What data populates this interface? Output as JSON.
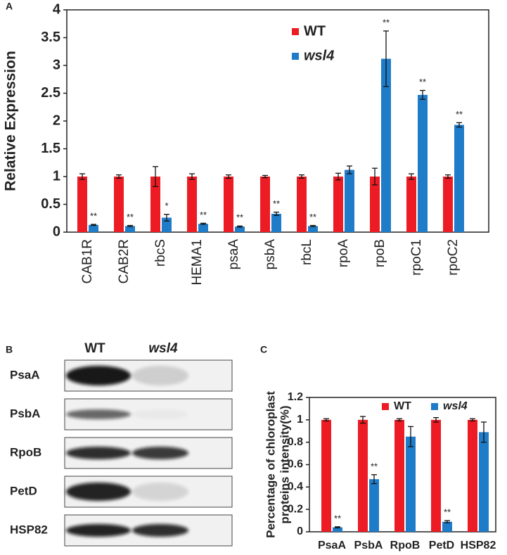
{
  "chart_data": [
    {
      "type": "bar",
      "panel_label": "A",
      "ylabel": "Relative Expression",
      "categories": [
        "CAB1R",
        "CAB2R",
        "rbcS",
        "HEMA1",
        "psaA",
        "psbA",
        "rbcL",
        "rpoA",
        "rpoB",
        "rpoC1",
        "rpoC2"
      ],
      "series": [
        {
          "name": "WT",
          "color": "#ed1c24",
          "values": [
            1,
            1,
            1,
            1,
            1,
            1,
            1,
            1,
            1,
            1,
            1
          ],
          "errors": [
            0.05,
            0.03,
            0.18,
            0.05,
            0.03,
            0.02,
            0.03,
            0.06,
            0.15,
            0.05,
            0.03
          ]
        },
        {
          "name": "wsl4",
          "color": "#1f7cc8",
          "values": [
            0.13,
            0.11,
            0.26,
            0.15,
            0.1,
            0.33,
            0.11,
            1.12,
            3.12,
            2.47,
            1.93
          ],
          "errors": [
            0.01,
            0.01,
            0.06,
            0.01,
            0.01,
            0.03,
            0.01,
            0.07,
            0.5,
            0.08,
            0.04
          ],
          "significance": [
            "**",
            "**",
            "*",
            "**",
            "**",
            "**",
            "**",
            null,
            "**",
            "**",
            "**"
          ]
        }
      ],
      "ylim": [
        0,
        4
      ],
      "yticks": [
        0,
        0.5,
        1,
        1.5,
        2,
        2.5,
        3,
        3.5,
        4
      ]
    },
    {
      "type": "bar",
      "panel_label": "C",
      "ylabel": [
        "Percentage of chloroplast",
        "proteins intensity(%)"
      ],
      "categories": [
        "PsaA",
        "PsbA",
        "RpoB",
        "PetD",
        "HSP82"
      ],
      "series": [
        {
          "name": "WT",
          "color": "#ed1c24",
          "values": [
            1,
            1,
            1,
            1,
            1
          ],
          "errors": [
            0.01,
            0.03,
            0.01,
            0.02,
            0.01
          ]
        },
        {
          "name": "wsl4",
          "color": "#1f7cc8",
          "values": [
            0.04,
            0.47,
            0.85,
            0.09,
            0.89
          ],
          "errors": [
            0.005,
            0.04,
            0.09,
            0.01,
            0.09
          ],
          "significance": [
            "**",
            "**",
            null,
            "**",
            null
          ]
        }
      ],
      "ylim": [
        0,
        1.2
      ],
      "yticks": [
        0,
        0.2,
        0.4,
        0.6,
        0.8,
        1,
        1.2
      ]
    }
  ],
  "blot": {
    "panel_label": "B",
    "columns": [
      "WT",
      "wsl4"
    ],
    "rows": [
      "PsaA",
      "PsbA",
      "RpoB",
      "PetD",
      "HSP82"
    ]
  }
}
